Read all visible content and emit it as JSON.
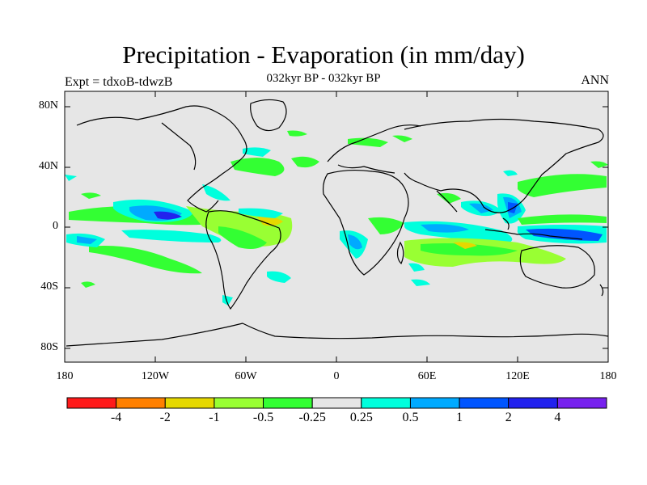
{
  "title": "Precipitation - Evaporation (in mm/day)",
  "subtitle": "032kyr BP - 032kyr BP",
  "left_label": "Expt = tdxoB-tdwzB",
  "right_label": "ANN",
  "lat_labels": [
    "80N",
    "40N",
    "0",
    "40S",
    "80S"
  ],
  "lon_labels": [
    "180",
    "120W",
    "60W",
    "0",
    "60E",
    "120E",
    "180"
  ],
  "colorbar": {
    "colors": [
      "#ff1a1a",
      "#ff8000",
      "#e6d800",
      "#99ff33",
      "#33ff33",
      "#e6e6e6",
      "#00ffdd",
      "#00aaff",
      "#0055ff",
      "#2222ee",
      "#7722ee"
    ],
    "labels": [
      "-4",
      "-2",
      "-1",
      "-0.5",
      "-0.25",
      "0.25",
      "0.5",
      "1",
      "2",
      "4"
    ]
  },
  "colors": {
    "ocean_bg": "#e6e6e6",
    "coast": "#000000"
  }
}
